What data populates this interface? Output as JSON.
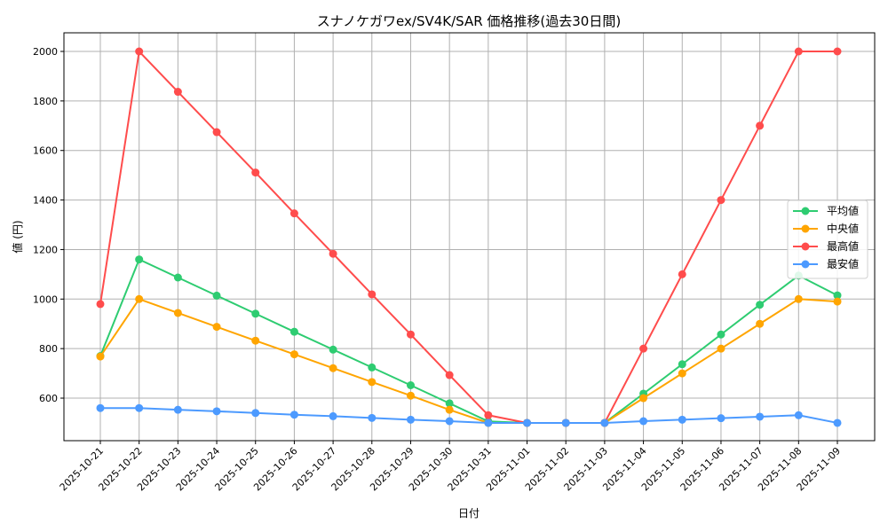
{
  "chart_data": {
    "type": "line",
    "title": "スナノケガワex/SV4K/SAR 価格推移(過去30日間)",
    "xlabel": "日付",
    "ylabel": "値 (円)",
    "ylim": [
      428,
      2075
    ],
    "yticks": [
      600,
      800,
      1000,
      1200,
      1400,
      1600,
      1800,
      2000
    ],
    "grid": true,
    "legend_position": "center right",
    "categories": [
      "2025-10-21",
      "2025-10-22",
      "2025-10-23",
      "2025-10-24",
      "2025-10-25",
      "2025-10-26",
      "2025-10-27",
      "2025-10-28",
      "2025-10-29",
      "2025-10-30",
      "2025-10-31",
      "2025-11-01",
      "2025-11-02",
      "2025-11-03",
      "2025-11-04",
      "2025-11-05",
      "2025-11-06",
      "2025-11-07",
      "2025-11-08",
      "2025-11-09"
    ],
    "series": [
      {
        "name": "平均値",
        "color": "#2ecc71",
        "values": [
          770,
          1160,
          1087,
          1014,
          941,
          868,
          796,
          724,
          652,
          579,
          506,
          500,
          500,
          500,
          618,
          737,
          857,
          977,
          1095,
          1015
        ]
      },
      {
        "name": "中央値",
        "color": "#ffa500",
        "values": [
          768,
          1000,
          944,
          888,
          832,
          777,
          721,
          665,
          610,
          553,
          500,
          500,
          500,
          500,
          600,
          700,
          800,
          900,
          1000,
          990
        ]
      },
      {
        "name": "最高値",
        "color": "#ff4c4c",
        "values": [
          980,
          2000,
          1837,
          1674,
          1511,
          1346,
          1183,
          1019,
          857,
          693,
          531,
          500,
          500,
          500,
          800,
          1100,
          1400,
          1700,
          2000,
          2000
        ]
      },
      {
        "name": "最安値",
        "color": "#4c9aff",
        "values": [
          560,
          560,
          553,
          547,
          540,
          533,
          527,
          520,
          513,
          507,
          500,
          500,
          500,
          500,
          507,
          513,
          519,
          525,
          531,
          500
        ]
      }
    ]
  }
}
